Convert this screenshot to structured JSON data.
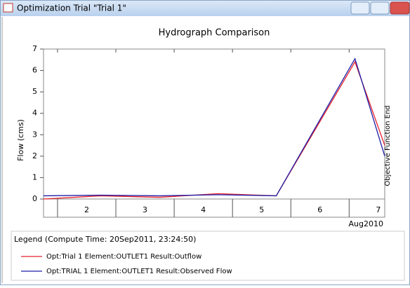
{
  "window": {
    "title": "Optimization Trial \"Trial 1\""
  },
  "chart_data": {
    "type": "line",
    "title": "Hydrograph Comparison",
    "ylabel": "Flow (cms)",
    "xlabel": "Aug2010",
    "x": [
      1.76,
      2.75,
      3.75,
      4.75,
      5.75,
      7.1,
      7.61
    ],
    "series": [
      {
        "name": "Opt:Trial 1 Element:OUTLET1 Result:Outflow",
        "color": "#e8212b",
        "values": [
          0.0,
          0.15,
          0.08,
          0.25,
          0.15,
          6.4,
          2.5
        ]
      },
      {
        "name": "Opt:TRIAL 1 Element:OUTLET1 Result:Observed Flow",
        "color": "#1f1fa8",
        "values": [
          0.15,
          0.18,
          0.15,
          0.2,
          0.15,
          6.55,
          2.0
        ]
      }
    ],
    "xlim": [
      1.76,
      7.61
    ],
    "xticks": [
      2,
      3,
      4,
      5,
      6,
      7
    ],
    "ylim": [
      0,
      7
    ],
    "yticks": [
      0,
      1,
      2,
      3,
      4,
      5,
      6,
      7
    ],
    "annotation": "Objective Function End",
    "legend_title": "Legend (Compute Time: 20Sep2011, 23:24:50)"
  }
}
